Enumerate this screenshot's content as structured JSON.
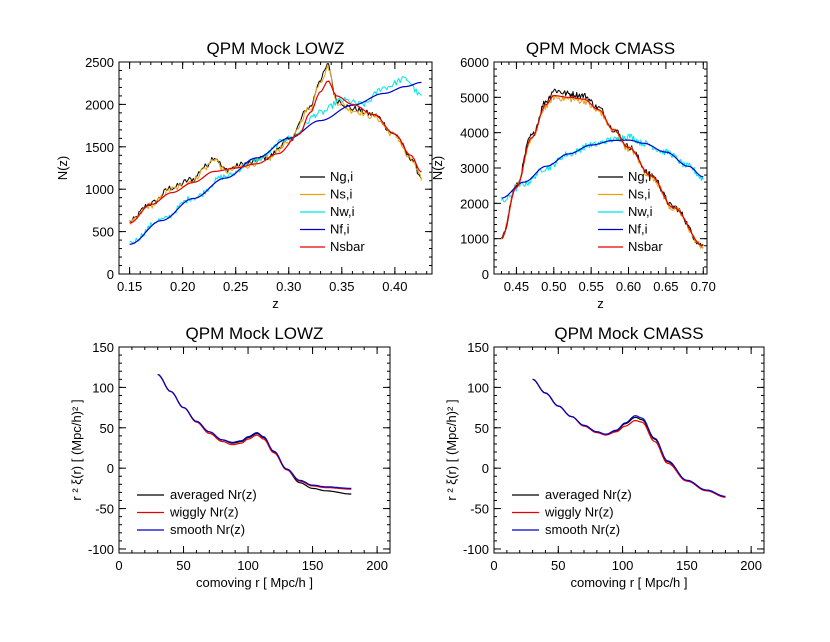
{
  "chart_data": [
    {
      "type": "line",
      "title": "QPM Mock LOWZ",
      "xlabel": "z",
      "ylabel": "N(z)",
      "xlim": [
        0.14,
        0.435
      ],
      "ylim": [
        0,
        2500
      ],
      "xticks": [
        0.15,
        0.2,
        0.25,
        0.3,
        0.35,
        0.4
      ],
      "xtick_labels": [
        "0.15",
        "0.20",
        "0.25",
        "0.30",
        "0.35",
        "0.40"
      ],
      "yticks": [
        0,
        500,
        1000,
        1500,
        2000,
        2500
      ],
      "ytick_labels": [
        "0",
        "500",
        "1000",
        "1500",
        "2000",
        "2500"
      ],
      "legend": "bottom-right",
      "grid": false,
      "series": [
        {
          "name": "Ng,i",
          "color": "#000000",
          "noisy": true,
          "x": [
            0.15,
            0.17,
            0.19,
            0.21,
            0.22,
            0.23,
            0.24,
            0.26,
            0.28,
            0.3,
            0.32,
            0.33,
            0.337,
            0.345,
            0.36,
            0.38,
            0.4,
            0.415,
            0.425
          ],
          "y": [
            620,
            830,
            1020,
            1120,
            1260,
            1380,
            1230,
            1300,
            1380,
            1580,
            1970,
            2300,
            2460,
            2050,
            1950,
            1880,
            1650,
            1370,
            1150
          ]
        },
        {
          "name": "Ns,i",
          "color": "#e8a10c",
          "noisy": true,
          "x": [
            0.15,
            0.17,
            0.19,
            0.21,
            0.22,
            0.23,
            0.24,
            0.26,
            0.28,
            0.3,
            0.32,
            0.33,
            0.337,
            0.345,
            0.36,
            0.38,
            0.4,
            0.415,
            0.425
          ],
          "y": [
            600,
            810,
            1000,
            1100,
            1240,
            1360,
            1210,
            1280,
            1360,
            1560,
            1950,
            2280,
            2440,
            2030,
            1930,
            1860,
            1630,
            1350,
            1130
          ]
        },
        {
          "name": "Nw,i",
          "color": "#00e5e5",
          "noisy": true,
          "x": [
            0.15,
            0.18,
            0.21,
            0.24,
            0.27,
            0.3,
            0.33,
            0.35,
            0.37,
            0.39,
            0.41,
            0.425
          ],
          "y": [
            370,
            640,
            900,
            1150,
            1350,
            1600,
            1900,
            2050,
            2000,
            2200,
            2300,
            2100
          ]
        },
        {
          "name": "Nf,i",
          "color": "#0000cc",
          "noisy": false,
          "x": [
            0.15,
            0.18,
            0.21,
            0.24,
            0.27,
            0.3,
            0.33,
            0.36,
            0.39,
            0.41,
            0.425
          ],
          "y": [
            350,
            630,
            890,
            1130,
            1370,
            1600,
            1810,
            1990,
            2130,
            2210,
            2260
          ]
        },
        {
          "name": "Nsbar",
          "color": "#e50000",
          "noisy": false,
          "x": [
            0.15,
            0.17,
            0.19,
            0.21,
            0.23,
            0.25,
            0.27,
            0.29,
            0.31,
            0.32,
            0.33,
            0.337,
            0.345,
            0.36,
            0.38,
            0.4,
            0.415,
            0.425
          ],
          "y": [
            600,
            820,
            960,
            1080,
            1210,
            1250,
            1300,
            1420,
            1650,
            1900,
            2150,
            2280,
            2100,
            2000,
            1880,
            1650,
            1400,
            1200
          ]
        }
      ]
    },
    {
      "type": "line",
      "title": "QPM Mock CMASS",
      "xlabel": "z",
      "ylabel": "N(z)",
      "xlim": [
        0.42,
        0.705
      ],
      "ylim": [
        0,
        6000
      ],
      "xticks": [
        0.45,
        0.5,
        0.55,
        0.6,
        0.65,
        0.7
      ],
      "xtick_labels": [
        "0.45",
        "0.50",
        "0.55",
        "0.60",
        "0.65",
        "0.70"
      ],
      "yticks": [
        0,
        1000,
        2000,
        3000,
        4000,
        5000,
        6000
      ],
      "ytick_labels": [
        "0",
        "1000",
        "2000",
        "3000",
        "4000",
        "5000",
        "6000"
      ],
      "legend": "bottom-right",
      "grid": false,
      "series": [
        {
          "name": "Ng,i",
          "color": "#000000",
          "noisy": true,
          "x": [
            0.43,
            0.45,
            0.47,
            0.49,
            0.5,
            0.52,
            0.54,
            0.56,
            0.58,
            0.6,
            0.63,
            0.66,
            0.7
          ],
          "y": [
            1000,
            2500,
            3900,
            4900,
            5200,
            5100,
            5050,
            4700,
            4100,
            3600,
            2800,
            1900,
            800
          ]
        },
        {
          "name": "Ns,i",
          "color": "#e8a10c",
          "noisy": true,
          "x": [
            0.43,
            0.45,
            0.47,
            0.49,
            0.5,
            0.52,
            0.54,
            0.56,
            0.58,
            0.6,
            0.63,
            0.66,
            0.7
          ],
          "y": [
            1050,
            2450,
            3800,
            4750,
            5000,
            4950,
            4900,
            4600,
            4050,
            3550,
            2750,
            1850,
            780
          ]
        },
        {
          "name": "Nw,i",
          "color": "#00e5e5",
          "noisy": true,
          "x": [
            0.43,
            0.46,
            0.49,
            0.52,
            0.55,
            0.58,
            0.6,
            0.62,
            0.65,
            0.68,
            0.7
          ],
          "y": [
            2050,
            2550,
            3000,
            3400,
            3650,
            3800,
            3900,
            3700,
            3450,
            3050,
            2700
          ]
        },
        {
          "name": "Nf,i",
          "color": "#0000cc",
          "noisy": false,
          "x": [
            0.43,
            0.46,
            0.49,
            0.52,
            0.55,
            0.58,
            0.6,
            0.62,
            0.65,
            0.68,
            0.7
          ],
          "y": [
            2150,
            2600,
            3050,
            3400,
            3650,
            3780,
            3790,
            3700,
            3450,
            3050,
            2750
          ]
        },
        {
          "name": "Nsbar",
          "color": "#e50000",
          "noisy": false,
          "x": [
            0.43,
            0.45,
            0.47,
            0.49,
            0.5,
            0.52,
            0.54,
            0.56,
            0.58,
            0.6,
            0.63,
            0.66,
            0.7
          ],
          "y": [
            1000,
            2450,
            3850,
            4800,
            5050,
            5000,
            4950,
            4650,
            4080,
            3580,
            2780,
            1880,
            800
          ]
        }
      ]
    },
    {
      "type": "line",
      "title": "QPM Mock LOWZ",
      "xlabel": "comoving r [ Mpc/h ]",
      "ylabel": "r ² ξ(r) [ (Mpc/h)² ]",
      "xlim": [
        0,
        210
      ],
      "ylim": [
        -105,
        150
      ],
      "xticks": [
        0,
        50,
        100,
        150,
        200
      ],
      "xtick_labels": [
        "0",
        "50",
        "100",
        "150",
        "200"
      ],
      "yticks": [
        -100,
        -50,
        0,
        50,
        100,
        150
      ],
      "ytick_labels": [
        "-100",
        "-50",
        "0",
        "50",
        "100",
        "150"
      ],
      "legend": "bottom-left",
      "grid": false,
      "series": [
        {
          "name": "averaged Nr(z)",
          "color": "#000000",
          "x": [
            30,
            40,
            50,
            60,
            70,
            80,
            88,
            95,
            100,
            107,
            112,
            120,
            130,
            140,
            150,
            160,
            180
          ],
          "y": [
            116,
            95,
            75,
            58,
            45,
            35,
            31,
            33,
            38,
            43,
            38,
            20,
            -2,
            -18,
            -25,
            -28,
            -32
          ]
        },
        {
          "name": "wiggly Nr(z)",
          "color": "#e50000",
          "x": [
            30,
            40,
            50,
            60,
            70,
            80,
            88,
            95,
            100,
            107,
            112,
            120,
            130,
            140,
            150,
            160,
            180
          ],
          "y": [
            116,
            95,
            75,
            57,
            43,
            33,
            29,
            31,
            36,
            41,
            36,
            19,
            -2,
            -16,
            -22,
            -24,
            -26
          ]
        },
        {
          "name": "smooth Nr(z)",
          "color": "#0000cc",
          "x": [
            30,
            40,
            50,
            60,
            70,
            80,
            88,
            95,
            100,
            107,
            112,
            120,
            130,
            140,
            150,
            160,
            180
          ],
          "y": [
            116,
            95,
            75,
            58,
            45,
            35,
            32,
            34,
            39,
            44,
            39,
            21,
            -1,
            -15,
            -21,
            -23,
            -25
          ]
        }
      ]
    },
    {
      "type": "line",
      "title": "QPM Mock CMASS",
      "xlabel": "comoving r [ Mpc/h ]",
      "ylabel": "r ² ξ(r) [ (Mpc/h)² ]",
      "xlim": [
        0,
        210
      ],
      "ylim": [
        -105,
        150
      ],
      "xticks": [
        0,
        50,
        100,
        150,
        200
      ],
      "xtick_labels": [
        "0",
        "50",
        "100",
        "150",
        "200"
      ],
      "yticks": [
        -100,
        -50,
        0,
        50,
        100,
        150
      ],
      "ytick_labels": [
        "-100",
        "-50",
        "0",
        "50",
        "100",
        "150"
      ],
      "legend": "bottom-left",
      "grid": false,
      "series": [
        {
          "name": "averaged Nr(z)",
          "color": "#000000",
          "x": [
            30,
            40,
            50,
            60,
            70,
            80,
            87,
            95,
            102,
            110,
            115,
            125,
            135,
            150,
            165,
            180
          ],
          "y": [
            110,
            93,
            77,
            64,
            53,
            45,
            42,
            46,
            55,
            63,
            60,
            36,
            8,
            -15,
            -27,
            -35
          ]
        },
        {
          "name": "wiggly Nr(z)",
          "color": "#e50000",
          "x": [
            30,
            40,
            50,
            60,
            70,
            80,
            87,
            95,
            102,
            110,
            115,
            125,
            135,
            150,
            165,
            180
          ],
          "y": [
            110,
            93,
            77,
            64,
            52,
            44,
            41,
            45,
            52,
            59,
            57,
            33,
            6,
            -16,
            -28,
            -36
          ]
        },
        {
          "name": "smooth Nr(z)",
          "color": "#0000cc",
          "x": [
            30,
            40,
            50,
            60,
            70,
            80,
            87,
            95,
            102,
            110,
            115,
            125,
            135,
            150,
            165,
            180
          ],
          "y": [
            110,
            93,
            77,
            64,
            53,
            45,
            42,
            47,
            56,
            65,
            62,
            37,
            9,
            -15,
            -27,
            -35
          ]
        }
      ]
    }
  ]
}
